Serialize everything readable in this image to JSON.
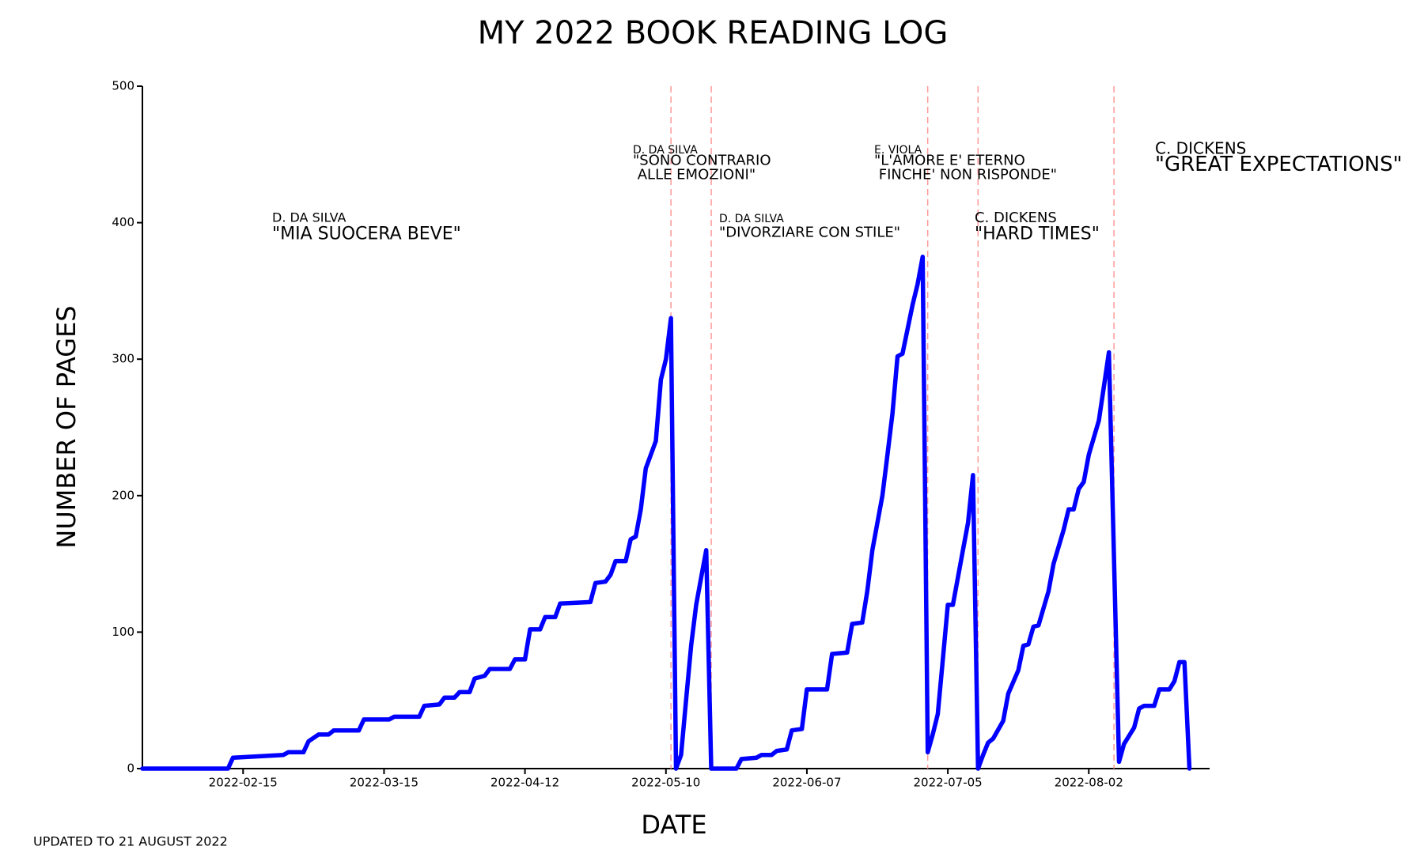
{
  "chart_data": {
    "type": "line",
    "title": "MY 2022 BOOK READING LOG",
    "xlabel": "DATE",
    "ylabel": "NUMBER OF PAGES",
    "footnote": "UPDATED TO 21 AUGUST 2022",
    "color": "#0000ff",
    "x": [
      "2022-01-26",
      "2022-02-12",
      "2022-02-13",
      "2022-02-23",
      "2022-02-24",
      "2022-02-27",
      "2022-02-28",
      "2022-03-02",
      "2022-03-04",
      "2022-03-05",
      "2022-03-10",
      "2022-03-11",
      "2022-03-16",
      "2022-03-17",
      "2022-03-22",
      "2022-03-23",
      "2022-03-26",
      "2022-03-27",
      "2022-03-29",
      "2022-03-30",
      "2022-04-01",
      "2022-04-02",
      "2022-04-04",
      "2022-04-05",
      "2022-04-09",
      "2022-04-10",
      "2022-04-12",
      "2022-04-13",
      "2022-04-15",
      "2022-04-16",
      "2022-04-18",
      "2022-04-19",
      "2022-04-25",
      "2022-04-26",
      "2022-04-28",
      "2022-04-29",
      "2022-04-30",
      "2022-05-02",
      "2022-05-03",
      "2022-05-04",
      "2022-05-05",
      "2022-05-06",
      "2022-05-08",
      "2022-05-09",
      "2022-05-10",
      "2022-05-11",
      "2022-05-12",
      "2022-05-13",
      "2022-05-14",
      "2022-05-15",
      "2022-05-16",
      "2022-05-17",
      "2022-05-18",
      "2022-05-19",
      "2022-05-24",
      "2022-05-25",
      "2022-05-28",
      "2022-05-29",
      "2022-05-31",
      "2022-06-01",
      "2022-06-03",
      "2022-06-04",
      "2022-06-06",
      "2022-06-07",
      "2022-06-11",
      "2022-06-12",
      "2022-06-15",
      "2022-06-16",
      "2022-06-18",
      "2022-06-19",
      "2022-06-20",
      "2022-06-22",
      "2022-06-23",
      "2022-06-24",
      "2022-06-25",
      "2022-06-26",
      "2022-06-28",
      "2022-06-29",
      "2022-06-30",
      "2022-07-01",
      "2022-07-02",
      "2022-07-03",
      "2022-07-04",
      "2022-07-05",
      "2022-07-06",
      "2022-07-08",
      "2022-07-09",
      "2022-07-10",
      "2022-07-11",
      "2022-07-12",
      "2022-07-13",
      "2022-07-14",
      "2022-07-16",
      "2022-07-17",
      "2022-07-19",
      "2022-07-20",
      "2022-07-21",
      "2022-07-22",
      "2022-07-23",
      "2022-07-25",
      "2022-07-26",
      "2022-07-28",
      "2022-07-29",
      "2022-07-30",
      "2022-07-31",
      "2022-08-01",
      "2022-08-02",
      "2022-08-04",
      "2022-08-05",
      "2022-08-06",
      "2022-08-08",
      "2022-08-09",
      "2022-08-11",
      "2022-08-12",
      "2022-08-13",
      "2022-08-15",
      "2022-08-16",
      "2022-08-18",
      "2022-08-19",
      "2022-08-20",
      "2022-08-21",
      "2022-08-22"
    ],
    "values": [
      0,
      0,
      8,
      10,
      12,
      12,
      20,
      25,
      25,
      28,
      28,
      36,
      36,
      38,
      38,
      46,
      47,
      52,
      52,
      56,
      56,
      66,
      68,
      73,
      73,
      80,
      80,
      102,
      102,
      111,
      111,
      121,
      122,
      136,
      137,
      142,
      152,
      152,
      168,
      170,
      190,
      220,
      240,
      285,
      300,
      330,
      0,
      10,
      50,
      90,
      120,
      140,
      160,
      0,
      0,
      7,
      8,
      10,
      10,
      13,
      14,
      28,
      29,
      58,
      58,
      84,
      85,
      106,
      107,
      130,
      160,
      200,
      230,
      260,
      302,
      304,
      340,
      355,
      375,
      12,
      25,
      40,
      80,
      120,
      120,
      160,
      180,
      215,
      0,
      10,
      19,
      22,
      35,
      55,
      72,
      90,
      91,
      104,
      105,
      130,
      150,
      175,
      190,
      190,
      205,
      210,
      230,
      255,
      280,
      305,
      5,
      18,
      30,
      44,
      46,
      46,
      58,
      58,
      64,
      78,
      78,
      0
    ],
    "xlim": [
      "2022-01-26",
      "2022-08-26"
    ],
    "xticks": [
      "2022-02-15",
      "2022-03-15",
      "2022-04-12",
      "2022-05-10",
      "2022-06-07",
      "2022-07-05",
      "2022-08-02"
    ],
    "ylim": [
      0,
      500
    ],
    "yticks": [
      0,
      100,
      200,
      300,
      400,
      500
    ],
    "vlines": {
      "x": [
        "2022-05-11",
        "2022-05-19",
        "2022-07-01",
        "2022-07-11",
        "2022-08-07"
      ],
      "color": "#ff9999"
    },
    "annotations": [
      {
        "author": "D. DA SILVA",
        "title": [
          "\"MIA SUOCERA BEVE\""
        ]
      },
      {
        "author": "D. DA SILVA",
        "title": [
          "\"SONO CONTRARIO",
          " ALLE EMOZIONI\""
        ]
      },
      {
        "author": "D. DA SILVA",
        "title": [
          "\"DIVORZIARE CON STILE\""
        ]
      },
      {
        "author": "E. VIOLA",
        "title": [
          "\"L'AMORE E' ETERNO",
          " FINCHE' NON RISPONDE\""
        ]
      },
      {
        "author": "C. DICKENS",
        "title": [
          "\"HARD TIMES\""
        ]
      },
      {
        "author": "C. DICKENS",
        "title": [
          "\"GREAT EXPECTATIONS\""
        ]
      }
    ]
  }
}
